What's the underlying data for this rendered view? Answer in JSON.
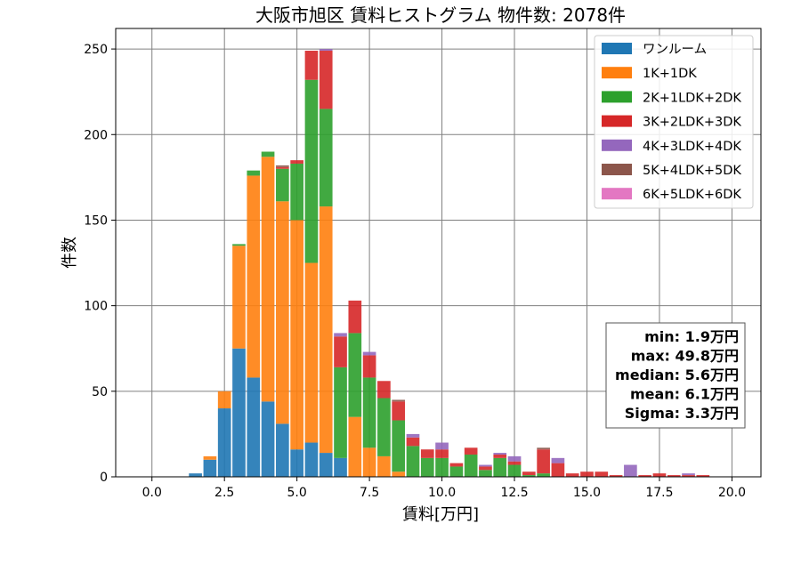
{
  "chart_data": {
    "type": "bar",
    "stacked": true,
    "title": "大阪市旭区 賃料ヒストグラム 物件数: 2078件",
    "xlabel": "賃料[万円]",
    "ylabel": "件数",
    "xlim": [
      -1.25,
      21.0
    ],
    "ylim": [
      0,
      262
    ],
    "xticks": [
      0.0,
      2.5,
      5.0,
      7.5,
      10.0,
      12.5,
      15.0,
      17.5,
      20.0
    ],
    "xtick_labels": [
      "0.0",
      "2.5",
      "5.0",
      "7.5",
      "10.0",
      "12.5",
      "15.0",
      "17.5",
      "20.0"
    ],
    "yticks": [
      0,
      50,
      100,
      150,
      200,
      250
    ],
    "ytick_labels": [
      "0",
      "50",
      "100",
      "150",
      "200",
      "250"
    ],
    "grid": true,
    "legend_position": "top-right",
    "bin_width": 0.5,
    "bins": [
      1.5,
      2.0,
      2.5,
      3.0,
      3.5,
      4.0,
      4.5,
      5.0,
      5.5,
      6.0,
      6.5,
      7.0,
      7.5,
      8.0,
      8.5,
      9.0,
      9.5,
      10.0,
      10.5,
      11.0,
      11.5,
      12.0,
      12.5,
      13.0,
      13.5,
      14.0,
      14.5,
      15.0,
      15.5,
      16.0,
      16.5,
      17.0,
      17.5,
      18.0,
      18.5,
      19.0,
      19.5
    ],
    "series": [
      {
        "name": "ワンルーム",
        "color": "#1f77b4",
        "values": [
          2,
          10,
          40,
          75,
          58,
          44,
          31,
          16,
          20,
          14,
          11,
          0,
          0,
          0,
          0,
          0,
          0,
          0,
          0,
          0,
          0,
          0,
          0,
          0,
          0,
          0,
          0,
          0,
          0,
          0,
          0,
          0,
          0,
          0,
          0,
          0,
          0
        ]
      },
      {
        "name": "1K+1DK",
        "color": "#ff7f0e",
        "values": [
          0,
          2,
          10,
          60,
          118,
          143,
          130,
          134,
          105,
          144,
          0,
          35,
          17,
          12,
          3,
          0,
          0,
          0,
          0,
          0,
          0,
          0,
          0,
          0,
          0,
          0,
          0,
          0,
          0,
          0,
          0,
          0,
          0,
          0,
          0,
          0,
          0
        ]
      },
      {
        "name": "2K+1LDK+2DK",
        "color": "#2ca02c",
        "values": [
          0,
          0,
          0,
          1,
          3,
          3,
          19,
          33,
          107,
          57,
          53,
          49,
          41,
          34,
          30,
          18,
          11,
          11,
          6,
          13,
          4,
          11,
          7,
          1,
          2,
          0,
          0,
          0,
          0,
          0,
          0,
          0,
          0,
          0,
          0,
          0,
          0
        ]
      },
      {
        "name": "3K+2LDK+3DK",
        "color": "#d62728",
        "values": [
          0,
          0,
          0,
          0,
          0,
          0,
          1,
          2,
          17,
          34,
          18,
          19,
          13,
          10,
          11,
          5,
          5,
          5,
          2,
          4,
          2,
          2,
          2,
          2,
          14,
          8,
          2,
          3,
          3,
          1,
          0,
          1,
          2,
          1,
          1,
          1,
          0
        ]
      },
      {
        "name": "4K+3LDK+4DK",
        "color": "#9467bd",
        "values": [
          0,
          0,
          0,
          0,
          0,
          0,
          0,
          0,
          0,
          1,
          2,
          0,
          2,
          0,
          0,
          2,
          0,
          4,
          0,
          0,
          1,
          1,
          3,
          0,
          0,
          3,
          0,
          0,
          0,
          0,
          7,
          0,
          0,
          0,
          1,
          0,
          0
        ]
      },
      {
        "name": "5K+4LDK+5DK",
        "color": "#8c564b",
        "values": [
          0,
          0,
          0,
          0,
          0,
          0,
          1,
          0,
          0,
          0,
          0,
          0,
          0,
          0,
          1,
          0,
          0,
          0,
          0,
          0,
          0,
          0,
          0,
          0,
          1,
          0,
          0,
          0,
          0,
          0,
          0,
          0,
          0,
          0,
          0,
          0,
          0
        ]
      },
      {
        "name": "6K+5LDK+6DK",
        "color": "#e377c2",
        "values": [
          0,
          0,
          0,
          0,
          0,
          0,
          0,
          0,
          0,
          0,
          0,
          0,
          0,
          0,
          0,
          0,
          0,
          0,
          0,
          0,
          0,
          0,
          0,
          0,
          0,
          0,
          0,
          0,
          0,
          0,
          0,
          0,
          0,
          0,
          0,
          0,
          0
        ]
      }
    ],
    "stats": [
      "min: 1.9万円",
      "max: 49.8万円",
      "median: 5.6万円",
      "mean: 6.1万円",
      "Sigma: 3.3万円"
    ]
  }
}
